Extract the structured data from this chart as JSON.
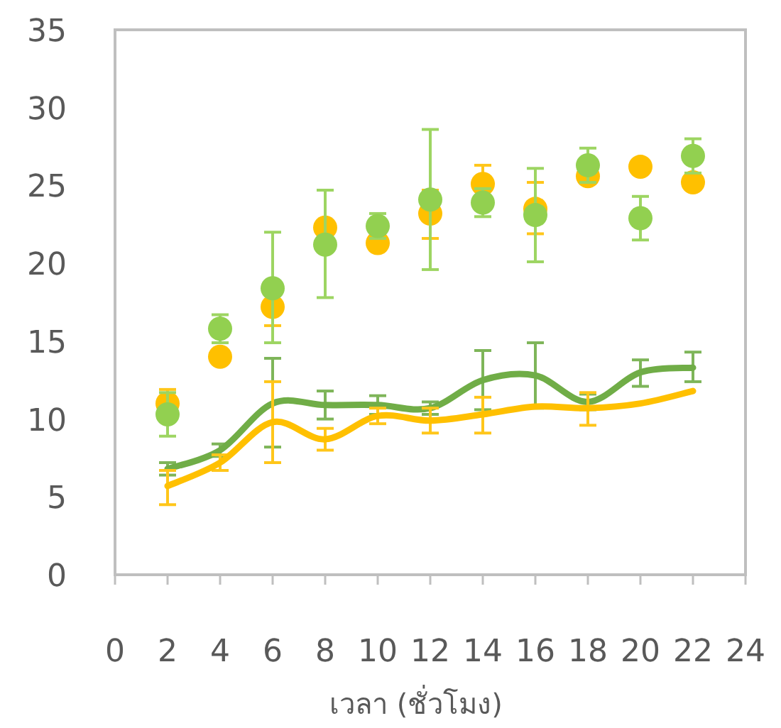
{
  "chart_data": {
    "type": "scatter",
    "xlabel": "เวลา (ชั่วโมง)",
    "xlim": [
      0,
      24
    ],
    "xticks": [
      0,
      2,
      4,
      6,
      8,
      10,
      12,
      14,
      16,
      18,
      20,
      22,
      24
    ],
    "ylim": [
      0,
      35
    ],
    "yticks": [
      0,
      5,
      10,
      15,
      20,
      25,
      30,
      35
    ],
    "grid": false,
    "x": [
      2,
      4,
      6,
      8,
      10,
      12,
      14,
      16,
      18,
      20,
      22
    ],
    "series": [
      {
        "marker": "circle",
        "color": "#ffc000",
        "values": [
          11.0,
          14.0,
          17.2,
          22.3,
          21.3,
          23.2,
          25.1,
          23.5,
          25.6,
          26.2,
          25.2
        ],
        "errors": [
          0.9,
          null,
          1.2,
          null,
          null,
          [
            21.6,
            24.7
          ],
          1.2,
          [
            21.9,
            25.2
          ],
          null,
          null,
          null
        ]
      },
      {
        "marker": "circle",
        "color": "#92d050",
        "values": [
          10.3,
          15.8,
          18.4,
          21.2,
          22.4,
          24.1,
          23.9,
          23.1,
          26.3,
          22.9,
          26.9
        ],
        "errors": [
          1.4,
          0.9,
          [
            14.9,
            22.0
          ],
          [
            17.8,
            24.7
          ],
          0.8,
          [
            19.6,
            28.6
          ],
          0.9,
          [
            20.1,
            26.1
          ],
          1.1,
          [
            21.5,
            24.3
          ],
          1.1
        ]
      },
      {
        "type": "line",
        "marker": "none",
        "color": "#70ad47",
        "values": [
          6.8,
          8.0,
          11.0,
          10.9,
          10.9,
          10.7,
          12.5,
          12.8,
          11.1,
          13.0,
          13.3
        ],
        "errors": [
          0.4,
          0.4,
          [
            8.2,
            13.9
          ],
          [
            10.0,
            11.8
          ],
          0.6,
          0.4,
          [
            10.6,
            14.4
          ],
          [
            10.7,
            14.9
          ],
          0.5,
          [
            12.1,
            13.8
          ],
          [
            12.4,
            14.3
          ]
        ]
      },
      {
        "type": "line",
        "marker": "none",
        "color": "#ffc000",
        "values": [
          5.7,
          7.2,
          9.8,
          8.7,
          10.2,
          9.9,
          10.3,
          10.8,
          10.7,
          11.0,
          11.8
        ],
        "errors": [
          [
            4.5,
            6.7
          ],
          0.5,
          [
            7.2,
            12.4
          ],
          [
            8.0,
            9.4
          ],
          0.5,
          0.8,
          [
            9.1,
            11.4
          ],
          null,
          [
            9.6,
            11.7
          ],
          null,
          null
        ]
      }
    ]
  }
}
